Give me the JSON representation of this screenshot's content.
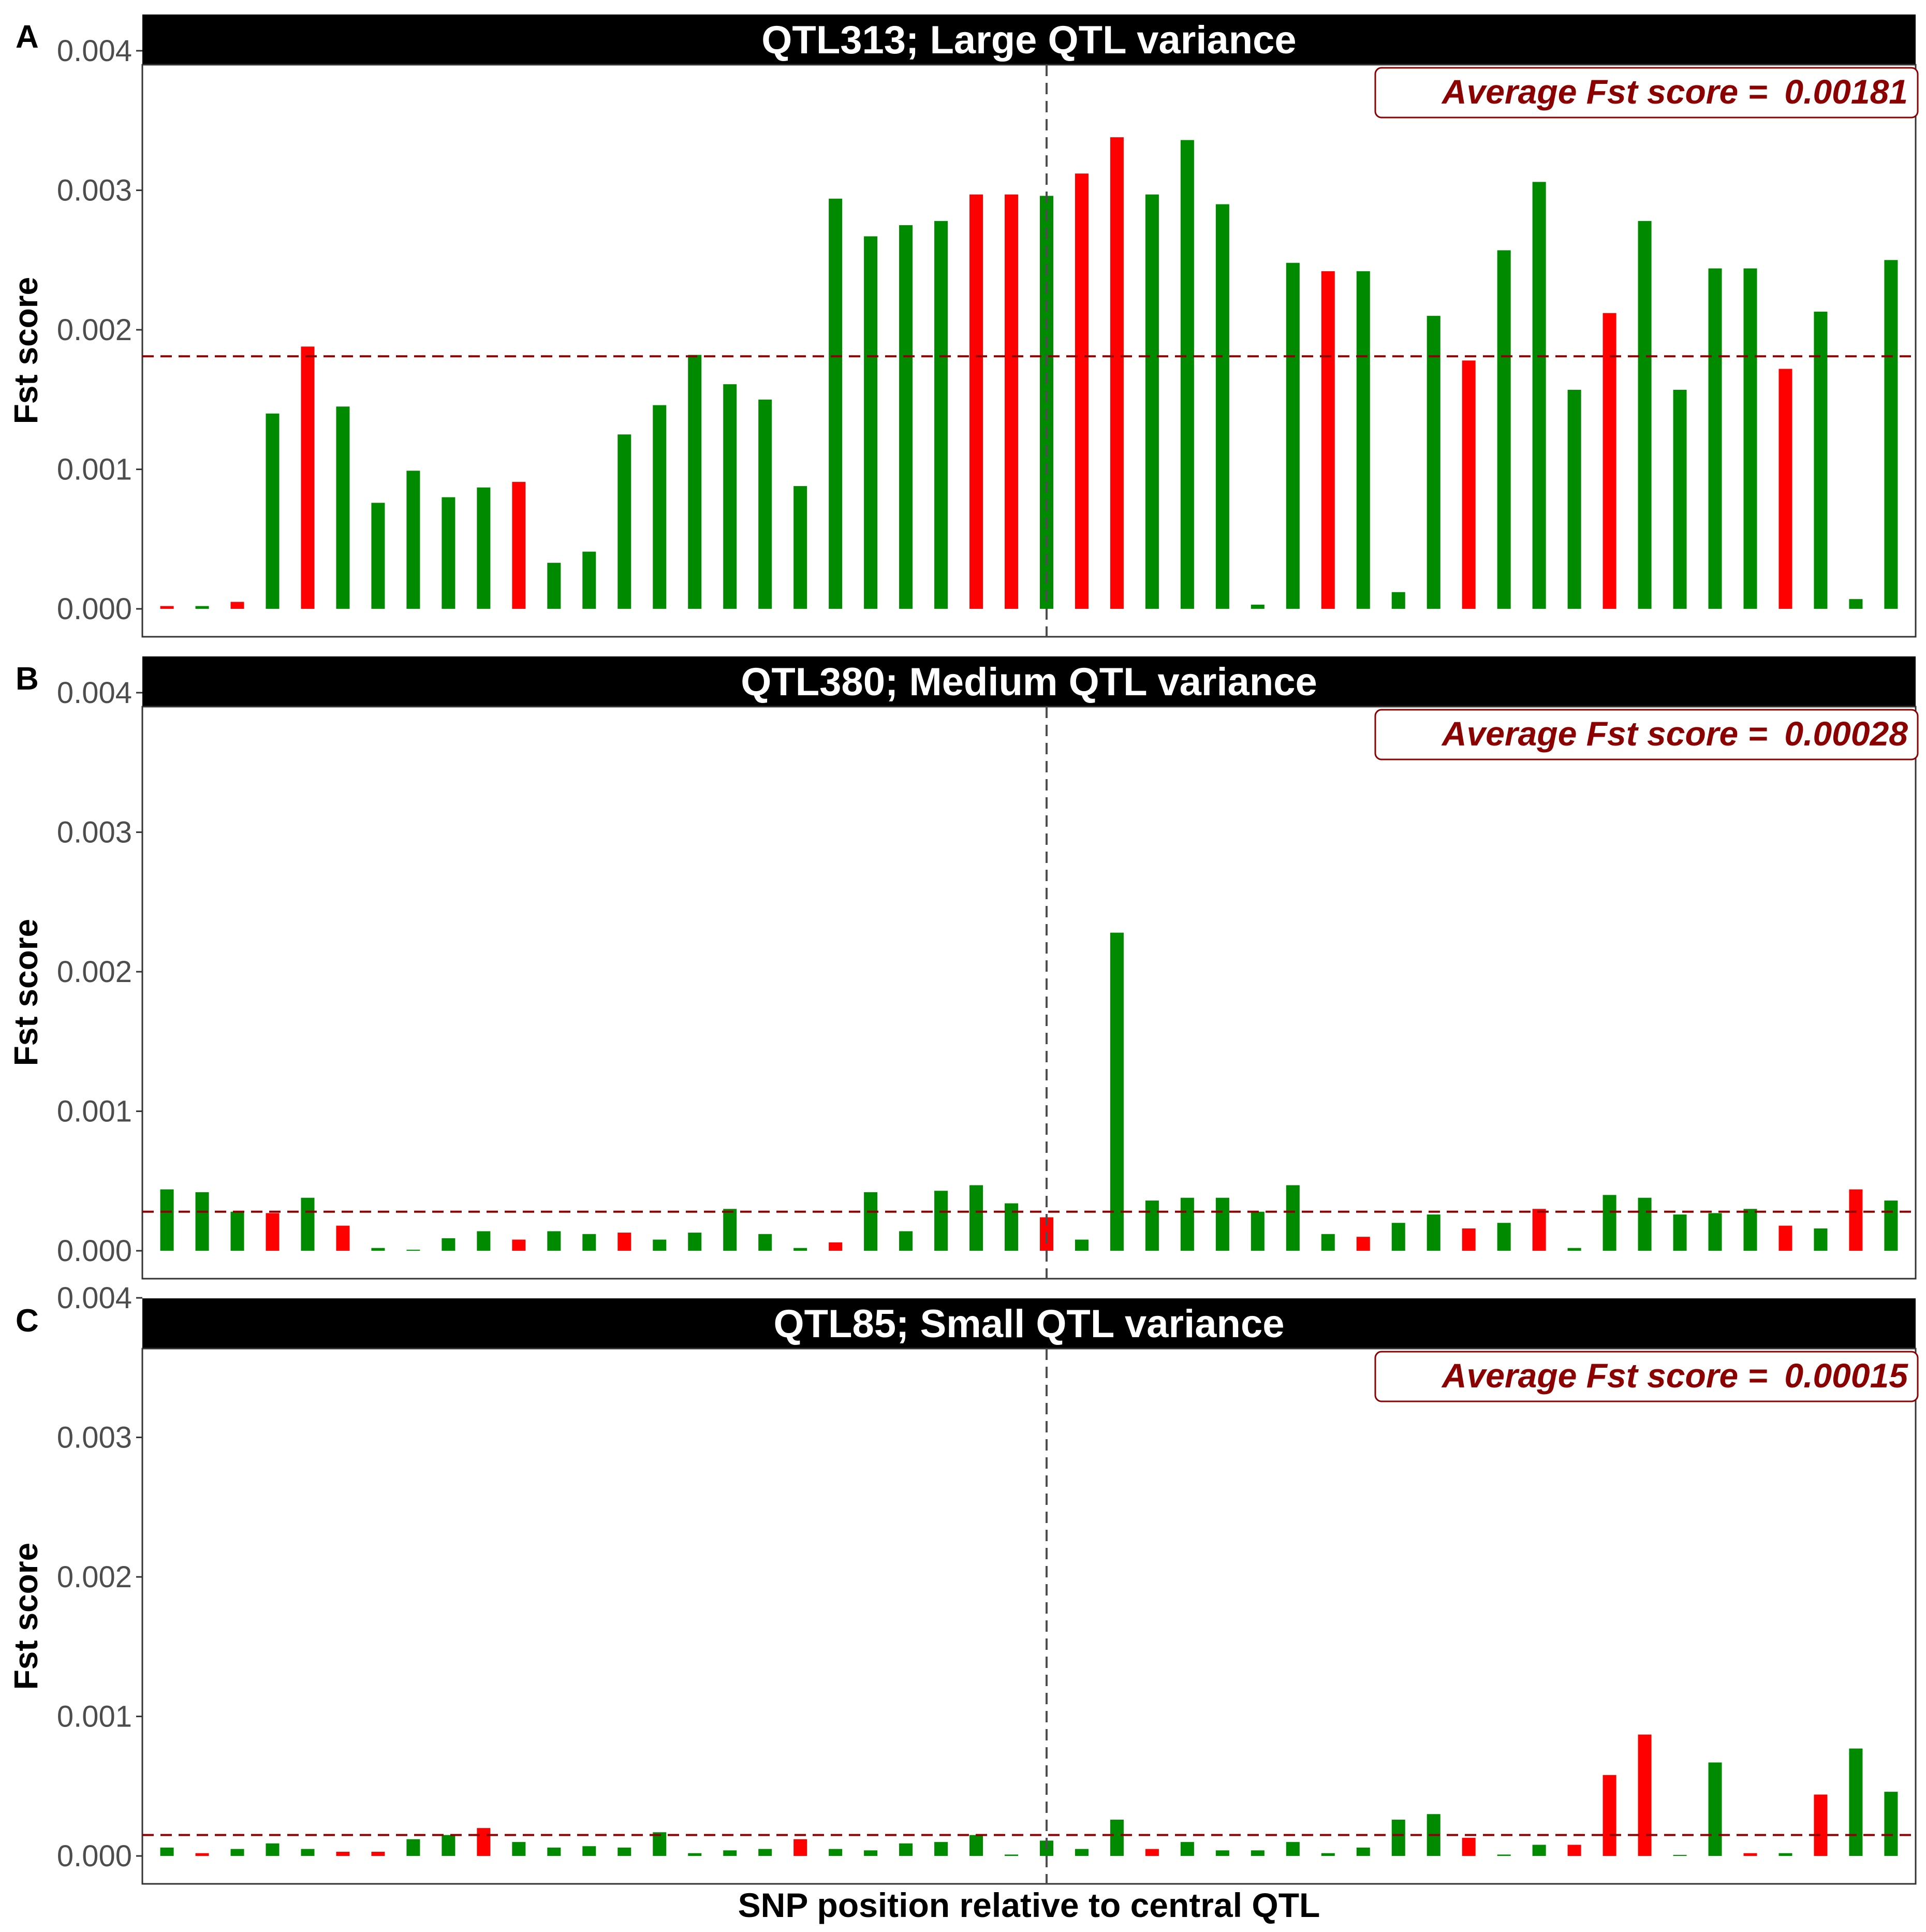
{
  "figure": {
    "x_axis_label": "SNP position relative to central QTL",
    "y_axis_label": "Fst score",
    "annotation_prefix": "Average Fst score = "
  },
  "colors": {
    "green": "#008a00",
    "red": "#ff0000",
    "average_line": "#8b0000",
    "center_line": "#4d4d4d",
    "strip": "#000000"
  },
  "chart_data": [
    {
      "type": "bar",
      "panel": "A",
      "title": "QTL313; Large QTL variance",
      "average_label": "0.00181",
      "average": 0.00181,
      "ylim": [
        -0.0002,
        0.0041
      ],
      "yticks": [
        "0.000",
        "0.001",
        "0.002",
        "0.003",
        "0.004"
      ],
      "ytick_values": [
        0,
        0.001,
        0.002,
        0.003,
        0.004
      ],
      "center_index": 25,
      "grid": false,
      "values": [
        2e-05,
        2e-05,
        5e-05,
        0.0014,
        0.00188,
        0.00145,
        0.00076,
        0.00099,
        0.0008,
        0.00087,
        0.00091,
        0.00033,
        0.00041,
        0.00125,
        0.00146,
        0.00182,
        0.00161,
        0.0015,
        0.00088,
        0.00294,
        0.00267,
        0.00275,
        0.00278,
        0.00297,
        0.00297,
        0.00296,
        0.00312,
        0.00338,
        0.00297,
        0.00336,
        0.0029,
        3e-05,
        0.00248,
        0.00242,
        0.00242,
        0.00012,
        0.0021,
        0.00178,
        0.00257,
        0.00306,
        0.00157,
        0.00212,
        0.00278,
        0.00157,
        0.00244,
        0.00244,
        0.00172,
        0.00213,
        7e-05,
        0.0025
      ],
      "colors": [
        "red",
        "green",
        "red",
        "green",
        "red",
        "green",
        "green",
        "green",
        "green",
        "green",
        "red",
        "green",
        "green",
        "green",
        "green",
        "green",
        "green",
        "green",
        "green",
        "green",
        "green",
        "green",
        "green",
        "red",
        "red",
        "green",
        "red",
        "red",
        "green",
        "green",
        "green",
        "green",
        "green",
        "red",
        "green",
        "green",
        "green",
        "red",
        "green",
        "green",
        "green",
        "red",
        "green",
        "green",
        "green",
        "green",
        "red",
        "green",
        "green",
        "green"
      ]
    },
    {
      "type": "bar",
      "panel": "B",
      "title": "QTL380; Medium QTL variance",
      "average_label": "0.00028",
      "average": 0.00028,
      "ylim": [
        -0.0002,
        0.0041
      ],
      "yticks": [
        "0.000",
        "0.001",
        "0.002",
        "0.003",
        "0.004"
      ],
      "ytick_values": [
        0,
        0.001,
        0.002,
        0.003,
        0.004
      ],
      "center_index": 25,
      "grid": false,
      "values": [
        0.00044,
        0.00042,
        0.00028,
        0.00027,
        0.00038,
        0.00018,
        2e-05,
        0,
        9e-05,
        0.00014,
        8e-05,
        0.00014,
        0.00012,
        0.00013,
        8e-05,
        0.00013,
        0.0003,
        0.00012,
        2e-05,
        6e-05,
        0.00042,
        0.00014,
        0.00043,
        0.00047,
        0.00034,
        0.00024,
        8e-05,
        0.00228,
        0.00036,
        0.00038,
        0.00038,
        0.00028,
        0.00047,
        0.00012,
        0.0001,
        0.0002,
        0.00026,
        0.00016,
        0.0002,
        0.0003,
        2e-05,
        0.0004,
        0.00038,
        0.00026,
        0.00027,
        0.0003,
        0.00018,
        0.00016,
        0.00044,
        0.00036
      ],
      "colors": [
        "green",
        "green",
        "green",
        "red",
        "green",
        "red",
        "green",
        "green",
        "green",
        "green",
        "red",
        "green",
        "green",
        "red",
        "green",
        "green",
        "green",
        "green",
        "green",
        "red",
        "green",
        "green",
        "green",
        "green",
        "green",
        "red",
        "green",
        "green",
        "green",
        "green",
        "green",
        "green",
        "green",
        "green",
        "red",
        "green",
        "green",
        "red",
        "green",
        "red",
        "green",
        "green",
        "green",
        "green",
        "green",
        "green",
        "red",
        "green",
        "red",
        "green"
      ]
    },
    {
      "type": "bar",
      "panel": "C",
      "title": "QTL85; Small QTL variance",
      "average_label": "0.00015",
      "average": 0.00015,
      "ylim": [
        -0.0002,
        0.0041
      ],
      "yticks": [
        "0.000",
        "0.001",
        "0.002",
        "0.003",
        "0.004"
      ],
      "ytick_values": [
        0,
        0.001,
        0.002,
        0.003,
        0.004
      ],
      "center_index": 25,
      "grid": false,
      "values": [
        6e-05,
        2e-05,
        5e-05,
        9e-05,
        5e-05,
        3e-05,
        3e-05,
        0.00012,
        0.00015,
        0.0002,
        0.0001,
        6e-05,
        7e-05,
        6e-05,
        0.00017,
        2e-05,
        4e-05,
        5e-05,
        0.00012,
        5e-05,
        4e-05,
        9e-05,
        0.0001,
        0.00015,
        1e-05,
        0.00011,
        5e-05,
        0.00026,
        5e-05,
        0.0001,
        4e-05,
        4e-05,
        0.0001,
        2e-05,
        6e-05,
        0.00026,
        0.0003,
        0.00013,
        1e-05,
        8e-05,
        8e-05,
        0.00058,
        0.00087,
        0,
        0.00067,
        2e-05,
        2e-05,
        0.00044,
        0.00077,
        0.00046
      ],
      "colors": [
        "green",
        "red",
        "green",
        "green",
        "green",
        "red",
        "red",
        "green",
        "green",
        "red",
        "green",
        "green",
        "green",
        "green",
        "green",
        "green",
        "green",
        "green",
        "red",
        "green",
        "green",
        "green",
        "green",
        "green",
        "green",
        "green",
        "green",
        "green",
        "red",
        "green",
        "green",
        "green",
        "green",
        "green",
        "green",
        "green",
        "green",
        "red",
        "green",
        "green",
        "red",
        "red",
        "red",
        "green",
        "green",
        "red",
        "green",
        "red",
        "green",
        "green"
      ]
    }
  ]
}
